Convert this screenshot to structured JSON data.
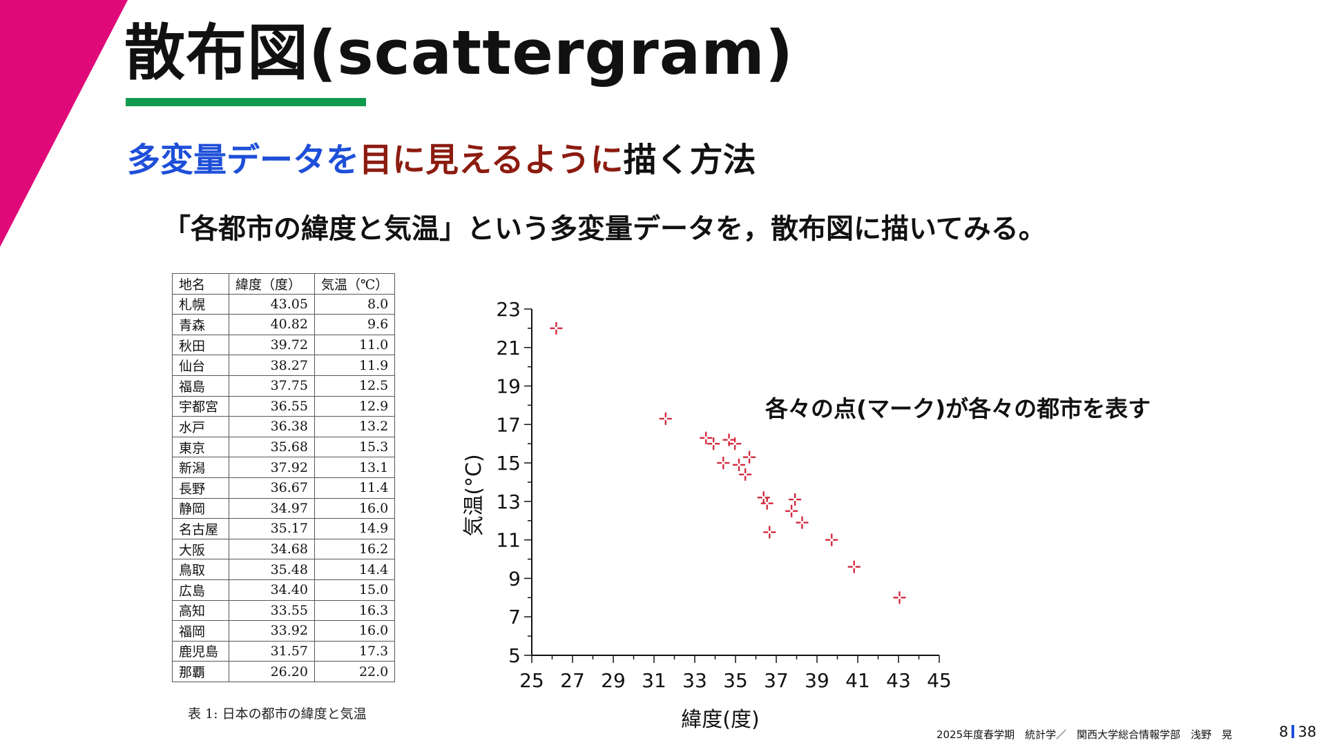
{
  "title": "散布図(scattergram)",
  "subtitle": {
    "part1": "多変量データを",
    "part2": "目に見えるように",
    "part3": "描く方法"
  },
  "lead": "「各都市の緯度と気温」という多変量データを，散布図に描いてみる。",
  "table": {
    "headers": [
      "地名",
      "緯度（度）",
      "気温（℃）"
    ],
    "rows": [
      [
        "札幌",
        "43.05",
        "8.0"
      ],
      [
        "青森",
        "40.82",
        "9.6"
      ],
      [
        "秋田",
        "39.72",
        "11.0"
      ],
      [
        "仙台",
        "38.27",
        "11.9"
      ],
      [
        "福島",
        "37.75",
        "12.5"
      ],
      [
        "宇都宮",
        "36.55",
        "12.9"
      ],
      [
        "水戸",
        "36.38",
        "13.2"
      ],
      [
        "東京",
        "35.68",
        "15.3"
      ],
      [
        "新潟",
        "37.92",
        "13.1"
      ],
      [
        "長野",
        "36.67",
        "11.4"
      ],
      [
        "静岡",
        "34.97",
        "16.0"
      ],
      [
        "名古屋",
        "35.17",
        "14.9"
      ],
      [
        "大阪",
        "34.68",
        "16.2"
      ],
      [
        "鳥取",
        "35.48",
        "14.4"
      ],
      [
        "広島",
        "34.40",
        "15.0"
      ],
      [
        "高知",
        "33.55",
        "16.3"
      ],
      [
        "福岡",
        "33.92",
        "16.0"
      ],
      [
        "鹿児島",
        "31.57",
        "17.3"
      ],
      [
        "那覇",
        "26.20",
        "22.0"
      ]
    ],
    "caption": "表 1: 日本の都市の緯度と気温"
  },
  "annotation": "各々の点(マーク)が各々の都市を表す",
  "footer": {
    "course": "2025年度春学期　統計学／　関西大学総合情報学部　浅野　晃",
    "page_current": "8",
    "page_total": "38"
  },
  "colors": {
    "accent": "#e0097a",
    "title_bar": "#0f9a4f",
    "blue": "#1e4fd8",
    "dark_red": "#8c1b10",
    "marker": "#d2283c"
  },
  "chart_data": {
    "type": "scatter",
    "xlabel": "緯度(度)",
    "ylabel": "気温(°C)",
    "xlim": [
      25,
      45
    ],
    "ylim": [
      5,
      23
    ],
    "xticks": [
      25,
      27,
      29,
      31,
      33,
      35,
      37,
      39,
      41,
      43,
      45
    ],
    "yticks": [
      5,
      7,
      9,
      11,
      13,
      15,
      17,
      19,
      21,
      23
    ],
    "grid": false,
    "points": [
      {
        "x": 43.05,
        "y": 8.0
      },
      {
        "x": 40.82,
        "y": 9.6
      },
      {
        "x": 39.72,
        "y": 11.0
      },
      {
        "x": 38.27,
        "y": 11.9
      },
      {
        "x": 37.75,
        "y": 12.5
      },
      {
        "x": 36.55,
        "y": 12.9
      },
      {
        "x": 36.38,
        "y": 13.2
      },
      {
        "x": 35.68,
        "y": 15.3
      },
      {
        "x": 37.92,
        "y": 13.1
      },
      {
        "x": 36.67,
        "y": 11.4
      },
      {
        "x": 34.97,
        "y": 16.0
      },
      {
        "x": 35.17,
        "y": 14.9
      },
      {
        "x": 34.68,
        "y": 16.2
      },
      {
        "x": 35.48,
        "y": 14.4
      },
      {
        "x": 34.4,
        "y": 15.0
      },
      {
        "x": 33.55,
        "y": 16.3
      },
      {
        "x": 33.92,
        "y": 16.0
      },
      {
        "x": 31.57,
        "y": 17.3
      },
      {
        "x": 26.2,
        "y": 22.0
      }
    ]
  }
}
